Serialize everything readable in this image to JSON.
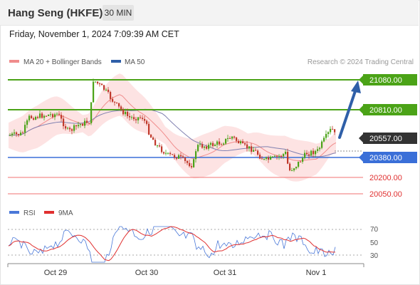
{
  "header": {
    "title": "Hang Seng (HKFE)",
    "timeframe": "30 MIN"
  },
  "datetime": "Friday, November 1, 2024 7:09:39 AM CET",
  "legend": {
    "ma20_label": "MA 20 + Bollinger Bands",
    "ma50_label": "MA 50",
    "copyright": "Research © 2024 Trading Central"
  },
  "levels": [
    {
      "label": "21080.00",
      "style": "green-box",
      "color": "#4ba317"
    },
    {
      "label": "20810.00",
      "style": "green-box",
      "color": "#4ba317"
    },
    {
      "label": "20557.00",
      "style": "price-box",
      "color": "#333333"
    },
    {
      "label": "20380.00",
      "style": "blue-box",
      "color": "#3a6fd8"
    },
    {
      "label": "20200.00",
      "style": "red-text",
      "color": "#e03030"
    },
    {
      "label": "20050.00",
      "style": "red-text",
      "color": "#e03030"
    }
  ],
  "rsi": {
    "rsi_label": "RSI",
    "ma_label": "9MA",
    "ticks": [
      "70",
      "50",
      "30"
    ]
  },
  "xaxis": {
    "labels": [
      "Oct 29",
      "Oct 30",
      "Oct 31",
      "Nov 1"
    ]
  },
  "colors": {
    "up": "#4ba317",
    "down": "#c0392b",
    "band": "#fde0e0",
    "ma20": "#f08c8c",
    "ma50": "#8080b0",
    "arrow": "#2f5fa8"
  }
}
